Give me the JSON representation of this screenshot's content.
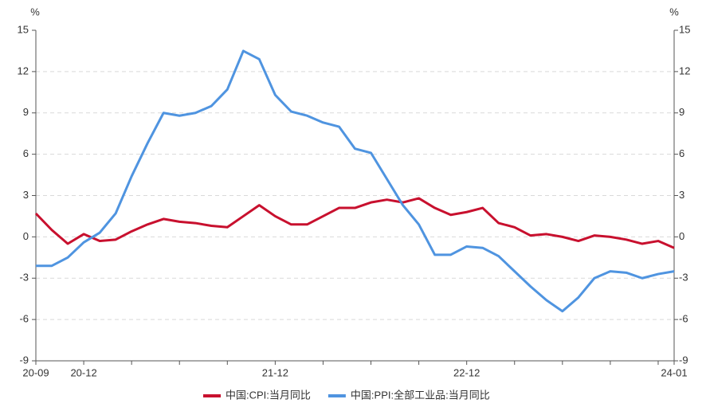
{
  "chart_data": {
    "type": "line",
    "y_label": "%",
    "y2_label": "%",
    "categories": [
      "20-09",
      null,
      null,
      "20-12",
      null,
      null,
      null,
      null,
      null,
      null,
      null,
      null,
      null,
      null,
      null,
      "21-12",
      null,
      null,
      null,
      null,
      null,
      null,
      null,
      null,
      null,
      null,
      null,
      "22-12",
      null,
      null,
      null,
      null,
      null,
      null,
      null,
      null,
      null,
      null,
      null,
      null,
      "24-01"
    ],
    "series": [
      {
        "name": "中国:CPI:当月同比",
        "color": "#c8102e",
        "values": [
          1.7,
          0.5,
          -0.5,
          0.2,
          -0.3,
          -0.2,
          0.4,
          0.9,
          1.3,
          1.1,
          1.0,
          0.8,
          0.7,
          1.5,
          2.3,
          1.5,
          0.9,
          0.9,
          1.5,
          2.1,
          2.1,
          2.5,
          2.7,
          2.5,
          2.8,
          2.1,
          1.6,
          1.8,
          2.1,
          1.0,
          0.7,
          0.1,
          0.2,
          0.0,
          -0.3,
          0.1,
          0.0,
          -0.2,
          -0.5,
          -0.3,
          -0.8
        ]
      },
      {
        "name": "中国:PPI:全部工业品:当月同比",
        "color": "#4f94e0",
        "values": [
          -2.1,
          -2.1,
          -1.5,
          -0.4,
          0.3,
          1.7,
          4.4,
          6.8,
          9.0,
          8.8,
          9.0,
          9.5,
          10.7,
          13.5,
          12.9,
          10.3,
          9.1,
          8.8,
          8.3,
          8.0,
          6.4,
          6.1,
          4.2,
          2.3,
          0.9,
          -1.3,
          -1.3,
          -0.7,
          -0.8,
          -1.4,
          -2.5,
          -3.6,
          -4.6,
          -5.4,
          -4.4,
          -3.0,
          -2.5,
          -2.6,
          -3.0,
          -2.7,
          -2.5
        ]
      }
    ],
    "ylim": [
      -9,
      15
    ],
    "yticks": [
      -9,
      -6,
      -3,
      0,
      3,
      6,
      9,
      12,
      15
    ],
    "y2lim": [
      -9,
      15
    ],
    "y2ticks": [
      -9,
      -6,
      -3,
      0,
      3,
      6,
      9,
      12,
      15
    ],
    "grid": true,
    "legend": "bottom"
  }
}
